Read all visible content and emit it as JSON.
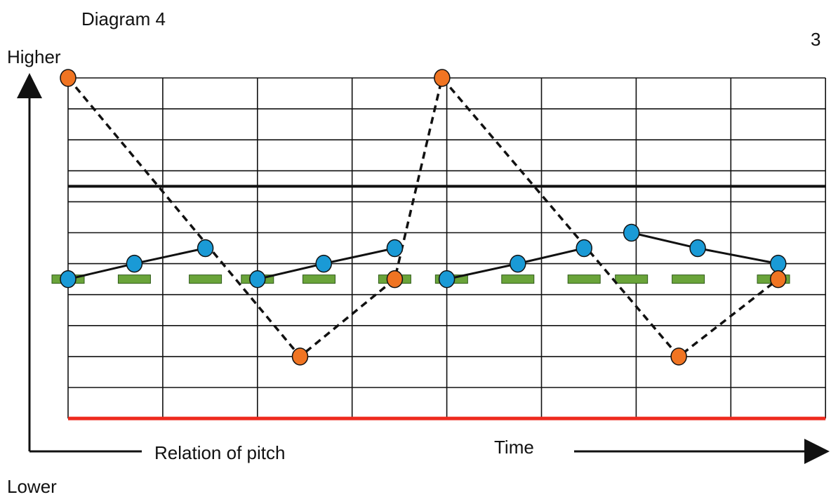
{
  "title": "Diagram 4",
  "page_number": "3",
  "labels": {
    "higher": "Higher",
    "lower": "Lower",
    "relation_of_pitch": "Relation of pitch",
    "time": "Time"
  },
  "colors": {
    "grid": "#111111",
    "reference_line": "#111111",
    "bottom_line": "#ee2a1e",
    "green_bar": "#6aa43a",
    "blue_dot": "#1a9ad6",
    "orange_dot": "#f07422",
    "dot_outline": "#111111"
  },
  "chart_data": {
    "type": "diagram",
    "grid": {
      "columns": 8,
      "rows": 11
    },
    "blue_series": [
      [
        [
          0,
          4.5
        ],
        [
          0.7,
          5
        ],
        [
          1.45,
          5.5
        ]
      ],
      [
        [
          2,
          4.5
        ],
        [
          2.7,
          5
        ],
        [
          3.45,
          5.5
        ]
      ],
      [
        [
          4,
          4.5
        ],
        [
          4.75,
          5
        ],
        [
          5.45,
          5.5
        ]
      ],
      [
        [
          5.95,
          6
        ],
        [
          6.65,
          5.5
        ],
        [
          7.5,
          5
        ]
      ]
    ],
    "orange_series": [
      [
        0,
        11
      ],
      [
        2.45,
        2
      ],
      [
        3.45,
        4.5
      ],
      [
        3.95,
        11
      ],
      [
        6.45,
        2
      ],
      [
        7.5,
        4.5
      ]
    ],
    "green_bars": [
      0,
      0.7,
      1.45,
      2,
      2.65,
      3.45,
      4.05,
      4.75,
      5.45,
      5.95,
      6.55,
      7.45
    ],
    "reference_level": 7.5
  }
}
